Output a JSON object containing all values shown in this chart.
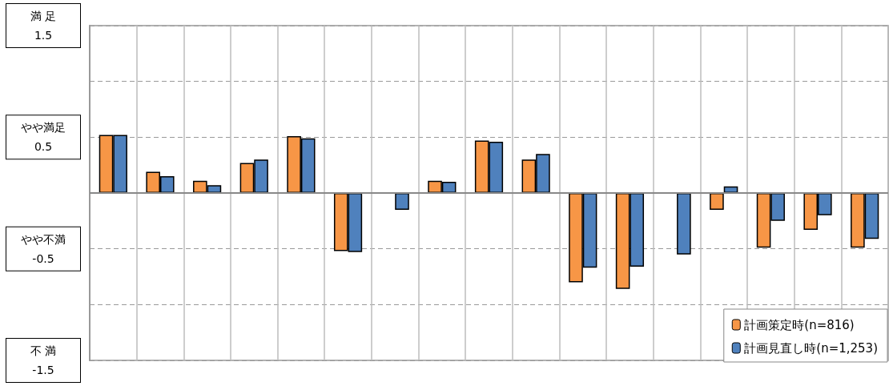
{
  "chart_data": {
    "type": "bar",
    "categories": [
      null,
      null,
      null,
      null,
      null,
      null,
      null,
      null,
      null,
      null,
      null,
      null,
      null,
      null,
      null,
      null,
      null
    ],
    "series": [
      {
        "name": "計画策定時(n=816)",
        "color": "#f79646",
        "values": [
          0.52,
          0.19,
          0.11,
          0.27,
          0.51,
          -0.52,
          null,
          0.11,
          0.47,
          0.3,
          -0.8,
          -0.86,
          null,
          -0.15,
          -0.49,
          -0.33,
          -0.49
        ]
      },
      {
        "name": "計画見直し時(n=1,253)",
        "color": "#4f81bd",
        "values": [
          0.52,
          0.15,
          0.07,
          0.3,
          0.49,
          -0.53,
          -0.15,
          0.1,
          0.46,
          0.35,
          -0.67,
          -0.66,
          -0.55,
          0.06,
          -0.25,
          -0.2,
          -0.41
        ]
      }
    ],
    "ylim": [
      -1.5,
      1.5
    ],
    "yticks": [
      {
        "value": -1.5,
        "label": "不 満\n-1.5"
      },
      {
        "value": -1,
        "label": null
      },
      {
        "value": -0.5,
        "label": "やや不満\n-0.5"
      },
      {
        "value": 0,
        "label": null
      },
      {
        "value": 0.5,
        "label": "やや満足\n0.5"
      },
      {
        "value": 1,
        "label": null
      },
      {
        "value": 1.5,
        "label": "満 足\n1.5"
      }
    ],
    "grid": true,
    "legend": "bottom right"
  }
}
